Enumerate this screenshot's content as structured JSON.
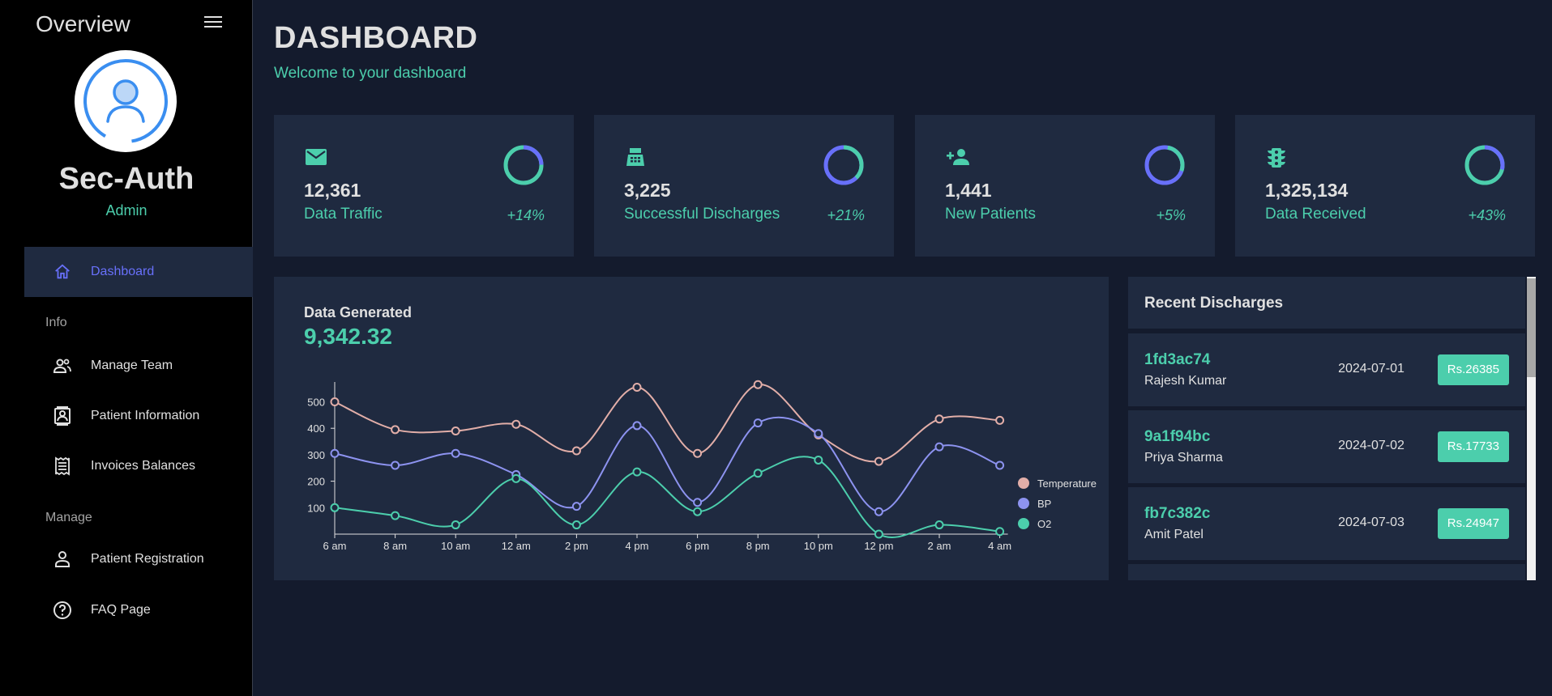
{
  "sidebar": {
    "title": "Overview",
    "user_name": "Sec-Auth",
    "user_role": "Admin",
    "items": [
      {
        "label": "Dashboard",
        "icon": "home-icon"
      },
      {
        "label": "Manage Team",
        "icon": "people-icon"
      },
      {
        "label": "Patient Information",
        "icon": "contacts-icon"
      },
      {
        "label": "Invoices Balances",
        "icon": "receipt-icon"
      },
      {
        "label": "Patient Registration",
        "icon": "person-icon"
      },
      {
        "label": "FAQ Page",
        "icon": "help-icon"
      }
    ],
    "sections": [
      "Info",
      "Manage"
    ]
  },
  "header": {
    "title": "DASHBOARD",
    "subtitle": "Welcome to your dashboard"
  },
  "stats": [
    {
      "value": "12,361",
      "label": "Data Traffic",
      "increase": "+14%",
      "icon": "email-icon"
    },
    {
      "value": "3,225",
      "label": "Successful Discharges",
      "increase": "+21%",
      "icon": "point-of-sale-icon"
    },
    {
      "value": "1,441",
      "label": "New Patients",
      "increase": "+5%",
      "icon": "person-add-icon"
    },
    {
      "value": "1,325,134",
      "label": "Data Received",
      "increase": "+43%",
      "icon": "traffic-icon"
    }
  ],
  "chart_panel": {
    "title": "Data Generated",
    "value": "9,342.32"
  },
  "chart_data": {
    "type": "line",
    "categories": [
      "6 am",
      "8 am",
      "10 am",
      "12 am",
      "2 pm",
      "4 pm",
      "6 pm",
      "8 pm",
      "10 pm",
      "12 pm",
      "2 am",
      "4 am"
    ],
    "series": [
      {
        "name": "Temperature",
        "color": "#e2aea8",
        "values": [
          500,
          395,
          390,
          415,
          315,
          555,
          305,
          565,
          375,
          275,
          435,
          430
        ]
      },
      {
        "name": "BP",
        "color": "#8d93f0",
        "values": [
          305,
          260,
          305,
          225,
          105,
          410,
          120,
          420,
          380,
          85,
          330,
          260
        ]
      },
      {
        "name": "O2",
        "color": "#4cceac",
        "values": [
          100,
          70,
          35,
          210,
          35,
          235,
          85,
          230,
          280,
          0,
          35,
          10
        ]
      }
    ],
    "yticks": [
      100,
      200,
      300,
      400,
      500
    ],
    "ylim": [
      0,
      580
    ],
    "title": "Data Generated",
    "legend_position": "right"
  },
  "discharges": {
    "title": "Recent Discharges",
    "rows": [
      {
        "id": "1fd3ac74",
        "name": "Rajesh Kumar",
        "date": "2024-07-01",
        "amount": "Rs.26385"
      },
      {
        "id": "9a1f94bc",
        "name": "Priya Sharma",
        "date": "2024-07-02",
        "amount": "Rs.17733"
      },
      {
        "id": "fb7c382c",
        "name": "Amit Patel",
        "date": "2024-07-03",
        "amount": "Rs.24947"
      }
    ]
  },
  "colors": {
    "accent": "#4cceac",
    "primary_bg": "#141b2d",
    "card_bg": "#1f2a40",
    "active_nav": "#6870fa"
  }
}
